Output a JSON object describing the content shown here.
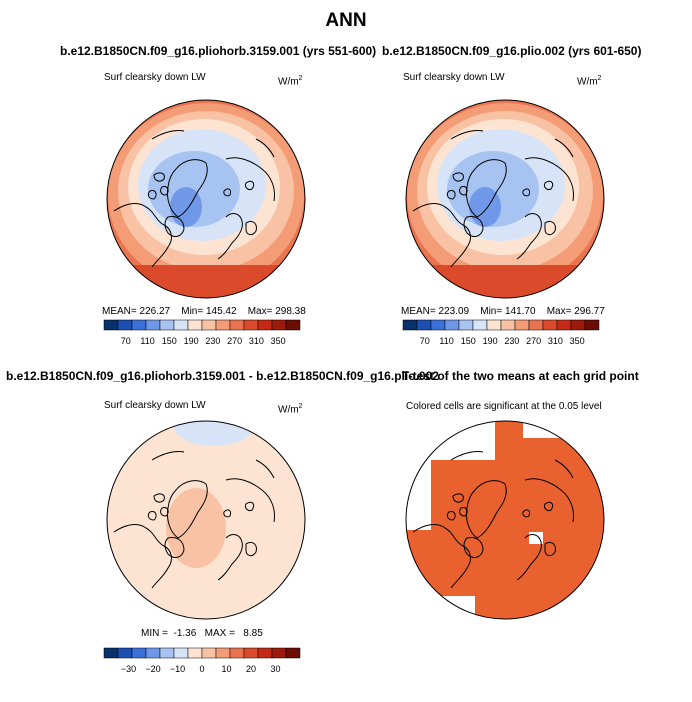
{
  "title": "ANN",
  "colors": {
    "diverging_scale": [
      "#08306b",
      "#1d4fb3",
      "#3a70d9",
      "#6f98e8",
      "#a7c3f2",
      "#d7e4f8",
      "#fde3d2",
      "#f9c2a4",
      "#f39c76",
      "#ea7350",
      "#dc4a2c",
      "#c62a16",
      "#9e1a0b",
      "#6b0c05"
    ],
    "significant": "#e8612f",
    "coast": "#000000"
  },
  "panels": [
    {
      "id": "top-left",
      "case_title": "b.e12.B1850CN.f09_g16.pliohorb.3159.001 (yrs 551-600)",
      "label": "Surf clearsky down LW",
      "units": "W/m",
      "units_sup": "2",
      "stats": {
        "mean_label": "MEAN=",
        "mean": "226.27",
        "min_label": "Min=",
        "min": "145.42",
        "max_label": "Max=",
        "max": "298.38"
      }
    },
    {
      "id": "top-right",
      "case_title": "b.e12.B1850CN.f09_g16.plio.002 (yrs 601-650)",
      "label": "Surf clearsky down LW",
      "units": "W/m",
      "units_sup": "2",
      "stats": {
        "mean_label": "MEAN=",
        "mean": "223.09",
        "min_label": "Min=",
        "min": "141.70",
        "max_label": "Max=",
        "max": "296.77"
      }
    },
    {
      "id": "bottom-left",
      "case_title": "b.e12.B1850CN.f09_g16.pliohorb.3159.001 - b.e12.B1850CN.f09_g16.plio.002",
      "label": "Surf clearsky down LW",
      "units": "W/m",
      "units_sup": "2",
      "stats": {
        "min_label": "MIN =",
        "min": "-1.36",
        "max_label": "MAX =",
        "max": "8.85"
      }
    },
    {
      "id": "bottom-right",
      "case_title": "T-test of the two means at each grid point",
      "label": "Colored cells are significant at the 0.05 level"
    }
  ],
  "chart_data": [
    {
      "type": "heatmap",
      "name": "Surf clearsky down LW (pliohorb.3159.001, yrs 551-600)",
      "units": "W/m2",
      "projection": "polar stereographic, north pole",
      "contour_levels": [
        70,
        110,
        150,
        190,
        230,
        270,
        310,
        350
      ],
      "colorbar_ticks": [
        "70",
        "110",
        "150",
        "190",
        "230",
        "270",
        "310",
        "350"
      ],
      "mean": 226.27,
      "min": 145.42,
      "max": 298.38
    },
    {
      "type": "heatmap",
      "name": "Surf clearsky down LW (plio.002, yrs 601-650)",
      "units": "W/m2",
      "projection": "polar stereographic, north pole",
      "contour_levels": [
        70,
        110,
        150,
        190,
        230,
        270,
        310,
        350
      ],
      "colorbar_ticks": [
        "70",
        "110",
        "150",
        "190",
        "230",
        "270",
        "310",
        "350"
      ],
      "mean": 223.09,
      "min": 141.7,
      "max": 296.77
    },
    {
      "type": "heatmap",
      "name": "Difference (pliohorb.3159.001 - plio.002)",
      "units": "W/m2",
      "projection": "polar stereographic, north pole",
      "contour_levels": [
        -30,
        -20,
        -10,
        0,
        10,
        20,
        30
      ],
      "colorbar_ticks": [
        "−30",
        "−20",
        "−10",
        "0",
        "10",
        "20",
        "30"
      ],
      "min": -1.36,
      "max": 8.85
    },
    {
      "type": "heatmap",
      "name": "T-test significance mask",
      "description_level": 0.05
    }
  ]
}
